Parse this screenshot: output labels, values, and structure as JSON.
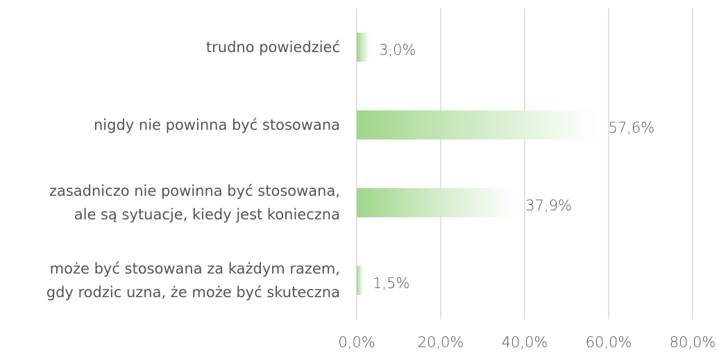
{
  "chart_data": {
    "type": "hbar",
    "categories": [
      "trudno powiedzieć",
      "nigdy nie powinna być stosowana",
      "zasadniczo nie powinna być stosowana,\nale są sytuacje, kiedy jest konieczna",
      "może być stosowana za każdym razem,\ngdy rodzic uzna, że może być skuteczna"
    ],
    "values": [
      3.0,
      57.6,
      37.9,
      1.5
    ],
    "value_labels": [
      "3,0%",
      "57,6%",
      "37,9%",
      "1,5%"
    ],
    "color": "#9fd68a",
    "xlim": [
      0,
      80
    ],
    "xticks": [
      {
        "value": 0,
        "label": "0,0%"
      },
      {
        "value": 20,
        "label": "20,0%"
      },
      {
        "value": 40,
        "label": "40,0%"
      },
      {
        "value": 60,
        "label": "60,0%"
      },
      {
        "value": 80,
        "label": "80,0%"
      }
    ],
    "grid": true
  }
}
